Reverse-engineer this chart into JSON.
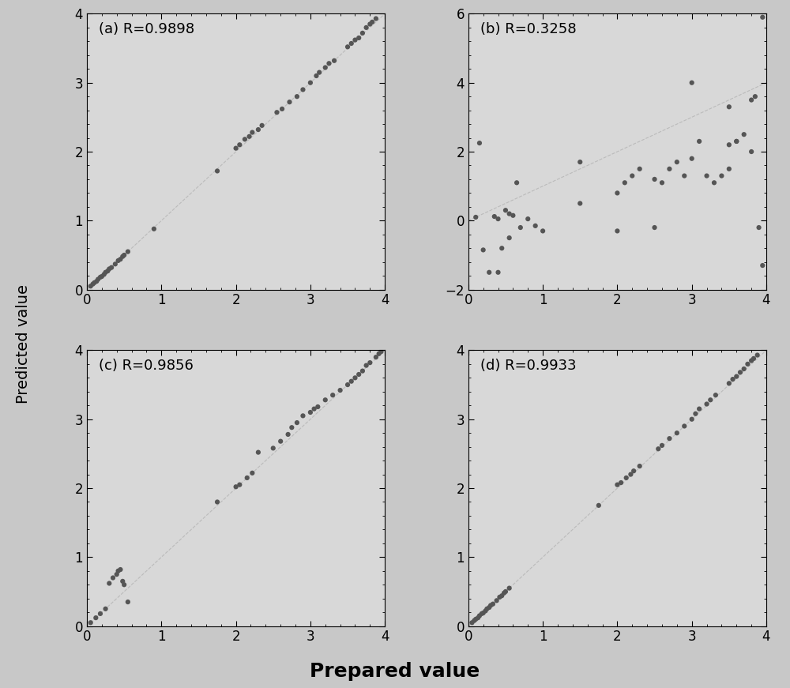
{
  "subplots": [
    {
      "label": "(a) R=0.9898",
      "xlim": [
        0,
        4
      ],
      "ylim": [
        0,
        4
      ],
      "xticks": [
        0,
        1,
        2,
        3,
        4
      ],
      "yticks": [
        0,
        1,
        2,
        3,
        4
      ],
      "x": [
        0.05,
        0.08,
        0.1,
        0.13,
        0.15,
        0.18,
        0.2,
        0.23,
        0.25,
        0.28,
        0.3,
        0.33,
        0.38,
        0.42,
        0.45,
        0.48,
        0.5,
        0.55,
        0.9,
        1.75,
        2.0,
        2.05,
        2.12,
        2.18,
        2.22,
        2.3,
        2.35,
        2.55,
        2.62,
        2.72,
        2.82,
        2.9,
        3.0,
        3.08,
        3.12,
        3.2,
        3.25,
        3.32,
        3.5,
        3.55,
        3.6,
        3.65,
        3.7,
        3.75,
        3.8,
        3.83,
        3.88
      ],
      "y": [
        0.05,
        0.08,
        0.1,
        0.12,
        0.15,
        0.18,
        0.19,
        0.22,
        0.25,
        0.27,
        0.3,
        0.32,
        0.37,
        0.42,
        0.44,
        0.48,
        0.5,
        0.55,
        0.88,
        1.72,
        2.05,
        2.1,
        2.18,
        2.22,
        2.28,
        2.32,
        2.38,
        2.57,
        2.62,
        2.72,
        2.8,
        2.9,
        3.0,
        3.1,
        3.15,
        3.22,
        3.28,
        3.32,
        3.52,
        3.57,
        3.62,
        3.65,
        3.72,
        3.8,
        3.85,
        3.88,
        3.93
      ]
    },
    {
      "label": "(b) R=0.3258",
      "xlim": [
        0,
        4
      ],
      "ylim": [
        -2,
        6
      ],
      "xticks": [
        0,
        1,
        2,
        3,
        4
      ],
      "yticks": [
        -2,
        0,
        2,
        4,
        6
      ],
      "x": [
        0.1,
        0.15,
        0.2,
        0.28,
        0.35,
        0.4,
        0.45,
        0.5,
        0.55,
        0.6,
        0.7,
        0.8,
        0.9,
        1.0,
        1.5,
        2.0,
        2.1,
        2.2,
        2.3,
        2.5,
        2.6,
        2.7,
        2.8,
        2.9,
        3.0,
        3.1,
        3.2,
        3.3,
        3.4,
        3.5,
        3.6,
        3.7,
        3.8,
        3.85,
        3.9,
        3.95,
        0.4,
        0.55,
        0.65,
        1.5,
        2.0,
        2.5,
        3.0,
        3.5,
        3.5,
        3.6,
        3.8,
        3.95
      ],
      "y": [
        0.1,
        2.25,
        -0.85,
        -1.5,
        0.12,
        0.05,
        -0.8,
        0.3,
        -0.5,
        0.15,
        -0.2,
        0.05,
        -0.15,
        -0.3,
        1.7,
        0.8,
        1.1,
        1.3,
        1.5,
        -0.2,
        1.1,
        1.5,
        1.7,
        1.3,
        1.8,
        2.3,
        1.3,
        1.1,
        1.3,
        1.5,
        2.3,
        2.5,
        3.5,
        3.6,
        -0.2,
        -1.3,
        -1.5,
        0.2,
        1.1,
        0.5,
        -0.3,
        1.2,
        4.0,
        3.3,
        2.2,
        2.3,
        2.0,
        5.9
      ]
    },
    {
      "label": "(c) R=0.9856",
      "xlim": [
        0,
        4
      ],
      "ylim": [
        0,
        4
      ],
      "xticks": [
        0,
        1,
        2,
        3,
        4
      ],
      "yticks": [
        0,
        1,
        2,
        3,
        4
      ],
      "x": [
        0.05,
        0.12,
        0.18,
        0.25,
        0.3,
        0.35,
        0.4,
        0.42,
        0.45,
        0.48,
        0.5,
        0.55,
        1.75,
        2.0,
        2.05,
        2.15,
        2.22,
        2.3,
        2.5,
        2.6,
        2.7,
        2.75,
        2.82,
        2.9,
        3.0,
        3.05,
        3.1,
        3.2,
        3.3,
        3.4,
        3.5,
        3.55,
        3.6,
        3.65,
        3.7,
        3.75,
        3.8,
        3.88,
        3.92,
        3.95
      ],
      "y": [
        0.05,
        0.12,
        0.18,
        0.25,
        0.62,
        0.7,
        0.75,
        0.8,
        0.82,
        0.65,
        0.6,
        0.35,
        1.8,
        2.02,
        2.05,
        2.15,
        2.22,
        2.52,
        2.58,
        2.68,
        2.78,
        2.88,
        2.95,
        3.05,
        3.1,
        3.15,
        3.18,
        3.28,
        3.35,
        3.42,
        3.5,
        3.55,
        3.6,
        3.65,
        3.7,
        3.78,
        3.82,
        3.9,
        3.95,
        3.98
      ]
    },
    {
      "label": "(d) R=0.9933",
      "xlim": [
        0,
        4
      ],
      "ylim": [
        0,
        4
      ],
      "xticks": [
        0,
        1,
        2,
        3,
        4
      ],
      "yticks": [
        0,
        1,
        2,
        3,
        4
      ],
      "x": [
        0.05,
        0.08,
        0.1,
        0.13,
        0.15,
        0.18,
        0.2,
        0.23,
        0.25,
        0.28,
        0.3,
        0.33,
        0.38,
        0.42,
        0.45,
        0.48,
        0.5,
        0.55,
        1.75,
        2.0,
        2.05,
        2.12,
        2.18,
        2.22,
        2.3,
        2.55,
        2.6,
        2.7,
        2.8,
        2.9,
        3.0,
        3.05,
        3.1,
        3.2,
        3.25,
        3.32,
        3.5,
        3.55,
        3.6,
        3.65,
        3.7,
        3.75,
        3.8,
        3.83,
        3.88
      ],
      "y": [
        0.05,
        0.08,
        0.1,
        0.12,
        0.15,
        0.18,
        0.19,
        0.22,
        0.25,
        0.27,
        0.3,
        0.32,
        0.37,
        0.42,
        0.44,
        0.48,
        0.5,
        0.55,
        1.75,
        2.05,
        2.08,
        2.15,
        2.2,
        2.25,
        2.32,
        2.57,
        2.62,
        2.72,
        2.8,
        2.9,
        3.0,
        3.08,
        3.15,
        3.22,
        3.28,
        3.35,
        3.52,
        3.58,
        3.62,
        3.68,
        3.73,
        3.8,
        3.85,
        3.88,
        3.93
      ]
    }
  ],
  "ylabel": "Predicted value",
  "xlabel": "Prepared value",
  "bg_color": "#d8d8d8",
  "dot_color": "#555555",
  "dot_size": 20,
  "diag_color": "#bbbbbb",
  "diag_style": "--",
  "fig_bg": "#c8c8c8"
}
